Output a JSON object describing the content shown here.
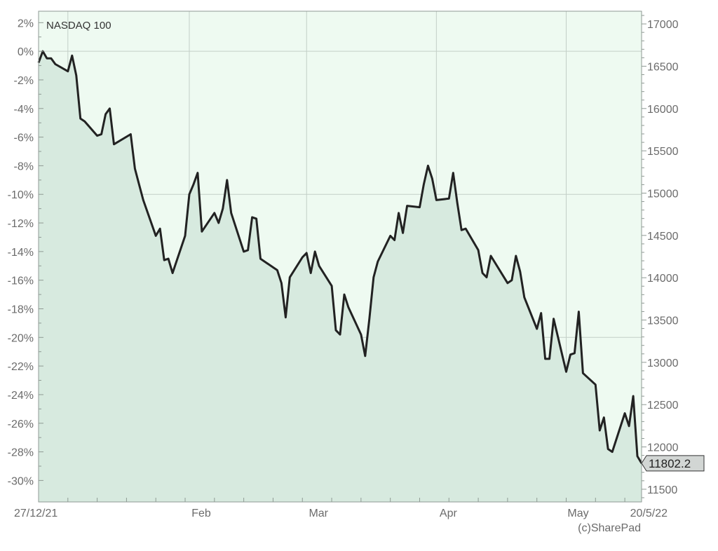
{
  "chart_data": {
    "type": "line",
    "title": "NASDAQ 100",
    "credit": "(c)SharePad",
    "last_value_label": "11802.2",
    "grid": true,
    "colors": {
      "plot_background": "#eefaf1",
      "area_fill": "#d7eadf",
      "line": "#222222",
      "grid": "#c3cfc7"
    },
    "x_axis": {
      "range": [
        "2021-12-27",
        "2022-05-20"
      ],
      "tick_labels": [
        {
          "date": "2021-12-27",
          "label": "27/12/21"
        },
        {
          "date": "2022-02-01",
          "label": "Feb"
        },
        {
          "date": "2022-03-01",
          "label": "Mar"
        },
        {
          "date": "2022-04-01",
          "label": "Apr"
        },
        {
          "date": "2022-05-02",
          "label": "May"
        },
        {
          "date": "2022-05-20",
          "label": "20/5/22"
        }
      ]
    },
    "y_left": {
      "unit": "%",
      "range": [
        -31.5,
        2.8
      ],
      "ticks": [
        2,
        0,
        -2,
        -4,
        -6,
        -8,
        -10,
        -12,
        -14,
        -16,
        -18,
        -20,
        -22,
        -24,
        -26,
        -28,
        -30
      ],
      "tick_labels": [
        "2%",
        "0%",
        "-2%",
        "-4%",
        "-6%",
        "-8%",
        "-10%",
        "-12%",
        "-14%",
        "-16%",
        "-18%",
        "-20%",
        "-22%",
        "-24%",
        "-26%",
        "-28%",
        "-30%"
      ]
    },
    "y_right": {
      "range": [
        11350,
        17150
      ],
      "ticks": [
        17000,
        16500,
        16000,
        15500,
        15000,
        14500,
        14000,
        13500,
        13000,
        12500,
        12000,
        11500
      ],
      "tick_labels": [
        "17000",
        "16500",
        "16000",
        "15500",
        "15000",
        "14500",
        "14000",
        "13500",
        "13000",
        "12500",
        "12000",
        "11500"
      ]
    },
    "series": [
      {
        "x": [
          "2021-12-27",
          "2021-12-28",
          "2021-12-29",
          "2021-12-30",
          "2021-12-31",
          "2022-01-03",
          "2022-01-04",
          "2022-01-05",
          "2022-01-06",
          "2022-01-07",
          "2022-01-10",
          "2022-01-11",
          "2022-01-12",
          "2022-01-13",
          "2022-01-14",
          "2022-01-18",
          "2022-01-19",
          "2022-01-20",
          "2022-01-21",
          "2022-01-24",
          "2022-01-25",
          "2022-01-26",
          "2022-01-27",
          "2022-01-28",
          "2022-01-31",
          "2022-02-01",
          "2022-02-02",
          "2022-02-03",
          "2022-02-04",
          "2022-02-07",
          "2022-02-08",
          "2022-02-09",
          "2022-02-10",
          "2022-02-11",
          "2022-02-14",
          "2022-02-15",
          "2022-02-16",
          "2022-02-17",
          "2022-02-18",
          "2022-02-22",
          "2022-02-23",
          "2022-02-24",
          "2022-02-25",
          "2022-02-28",
          "2022-03-01",
          "2022-03-02",
          "2022-03-03",
          "2022-03-04",
          "2022-03-07",
          "2022-03-08",
          "2022-03-09",
          "2022-03-10",
          "2022-03-11",
          "2022-03-14",
          "2022-03-15",
          "2022-03-16",
          "2022-03-17",
          "2022-03-18",
          "2022-03-21",
          "2022-03-22",
          "2022-03-23",
          "2022-03-24",
          "2022-03-25",
          "2022-03-28",
          "2022-03-29",
          "2022-03-30",
          "2022-03-31",
          "2022-04-01",
          "2022-04-04",
          "2022-04-05",
          "2022-04-06",
          "2022-04-07",
          "2022-04-08",
          "2022-04-11",
          "2022-04-12",
          "2022-04-13",
          "2022-04-14",
          "2022-04-18",
          "2022-04-19",
          "2022-04-20",
          "2022-04-21",
          "2022-04-22",
          "2022-04-25",
          "2022-04-26",
          "2022-04-27",
          "2022-04-28",
          "2022-04-29",
          "2022-05-02",
          "2022-05-03",
          "2022-05-04",
          "2022-05-05",
          "2022-05-06",
          "2022-05-09",
          "2022-05-10",
          "2022-05-11",
          "2022-05-12",
          "2022-05-13",
          "2022-05-16",
          "2022-05-17",
          "2022-05-18",
          "2022-05-19",
          "2022-05-20"
        ],
        "y": [
          -0.8,
          0.0,
          -0.5,
          -0.5,
          -0.9,
          -1.4,
          -0.3,
          -1.7,
          -4.7,
          -4.9,
          -5.9,
          -5.8,
          -4.4,
          -4.0,
          -6.5,
          -5.8,
          -8.2,
          -9.3,
          -10.4,
          -12.9,
          -12.4,
          -14.6,
          -14.5,
          -15.5,
          -12.9,
          -10.0,
          -9.3,
          -8.5,
          -12.6,
          -11.3,
          -12.0,
          -11.0,
          -9.0,
          -11.3,
          -14.0,
          -13.9,
          -11.6,
          -11.7,
          -14.5,
          -15.3,
          -16.2,
          -18.6,
          -15.8,
          -14.4,
          -14.1,
          -15.5,
          -14.0,
          -15.0,
          -16.4,
          -19.5,
          -19.8,
          -17.0,
          -17.9,
          -19.8,
          -21.3,
          -18.7,
          -15.8,
          -14.7,
          -12.9,
          -13.2,
          -11.3,
          -12.7,
          -10.8,
          -10.9,
          -9.3,
          -8.0,
          -8.9,
          -10.4,
          -10.3,
          -8.5,
          -10.6,
          -12.5,
          -12.4,
          -13.9,
          -15.5,
          -15.8,
          -14.3,
          -16.2,
          -16.0,
          -14.3,
          -15.4,
          -17.2,
          -19.4,
          -18.3,
          -21.5,
          -21.5,
          -18.7,
          -22.4,
          -21.2,
          -21.1,
          -18.2,
          -22.5,
          -23.3,
          -26.5,
          -25.6,
          -27.8,
          -28.0,
          -25.3,
          -26.2,
          -24.1,
          -28.3,
          -28.8
        ]
      }
    ]
  }
}
